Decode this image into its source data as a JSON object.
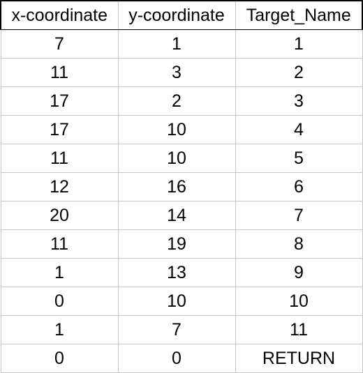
{
  "headers": [
    "x-coordinate",
    "y-coordinate",
    "Target_Name"
  ],
  "rows": [
    [
      "7",
      "1",
      "1"
    ],
    [
      "11",
      "3",
      "2"
    ],
    [
      "17",
      "2",
      "3"
    ],
    [
      "17",
      "10",
      "4"
    ],
    [
      "11",
      "10",
      "5"
    ],
    [
      "12",
      "16",
      "6"
    ],
    [
      "20",
      "14",
      "7"
    ],
    [
      "11",
      "19",
      "8"
    ],
    [
      "1",
      "13",
      "9"
    ],
    [
      "0",
      "10",
      "10"
    ],
    [
      "1",
      "7",
      "11"
    ],
    [
      "0",
      "0",
      "RETURN"
    ]
  ]
}
